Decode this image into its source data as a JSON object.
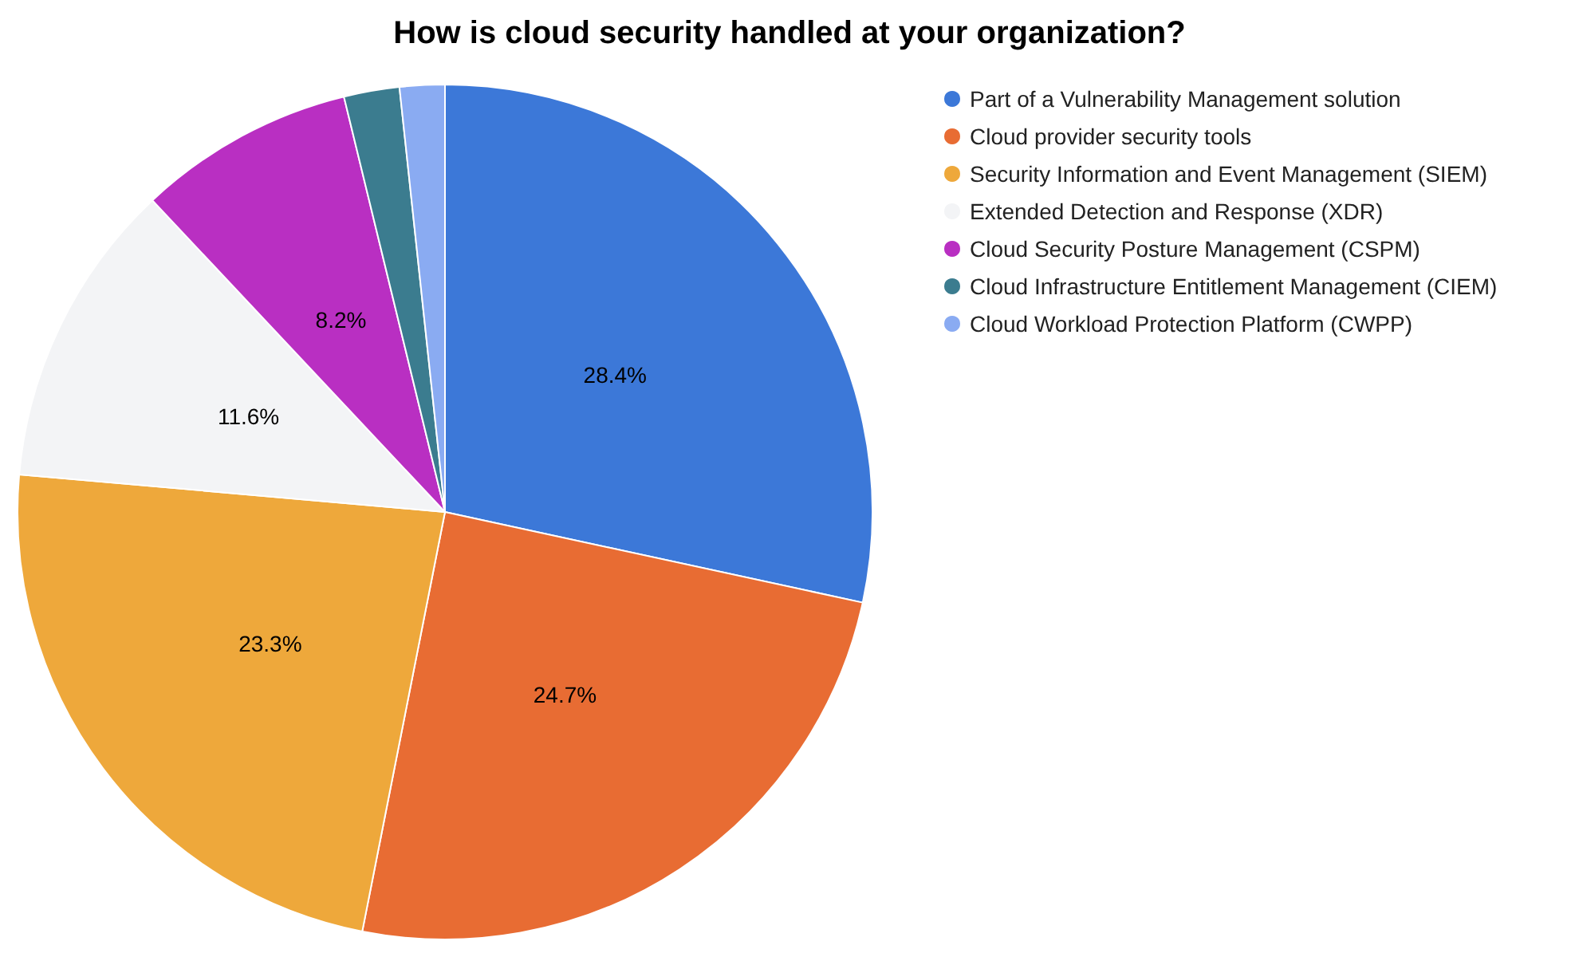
{
  "chart_data": {
    "type": "pie",
    "title": "How is cloud security handled at your organization?",
    "categories": [
      "Part of a Vulnerability Management solution",
      "Cloud provider security tools",
      "Security Information and Event Management (SIEM)",
      "Extended Detection and Response (XDR)",
      "Cloud Security Posture Management (CSPM)",
      "Cloud Infrastructure Entitlement Management (CIEM)",
      "Cloud Workload Protection Platform (CWPP)"
    ],
    "values": [
      28.4,
      24.7,
      23.3,
      11.6,
      8.2,
      2.1,
      1.7
    ],
    "colors": [
      "#3c78d8",
      "#e86c33",
      "#eea83b",
      "#f3f4f6",
      "#b92fc2",
      "#3b7c8f",
      "#8aabf2"
    ],
    "value_labels": [
      "28.4%",
      "24.7%",
      "23.3%",
      "11.6%",
      "8.2%",
      null,
      null
    ],
    "legend": "top right"
  }
}
